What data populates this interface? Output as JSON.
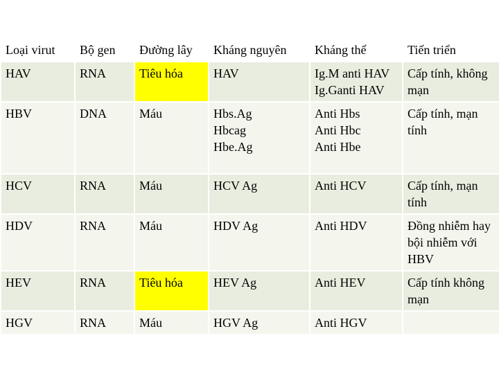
{
  "colors": {
    "header_bg": "#ffffff",
    "row_odd": "#e9eddf",
    "row_even": "#f4f6ee",
    "highlight": "#ffff00"
  },
  "headers": [
    "Loại virut",
    "Bộ gen",
    "Đường lây",
    "Kháng nguyên",
    "Kháng thể",
    "Tiến triển"
  ],
  "rows": [
    {
      "virus": "HAV",
      "genome": "RNA",
      "route": "Tiêu hóa",
      "antigen": [
        "HAV"
      ],
      "antibody": [
        "Ig.M anti HAV",
        "Ig.Ganti HAV"
      ],
      "course": "Cấp tính, không mạn"
    },
    {
      "virus": "HBV",
      "genome": "DNA",
      "route": "Máu",
      "antigen": [
        "Hbs.Ag",
        "Hbcag",
        "Hbe.Ag"
      ],
      "antibody": [
        "Anti Hbs",
        "Anti Hbc",
        "Anti Hbe"
      ],
      "course": "Cấp tính, mạn tính"
    },
    {
      "virus": "HCV",
      "genome": "RNA",
      "route": "Máu",
      "antigen": [
        "HCV Ag"
      ],
      "antibody": [
        "Anti HCV"
      ],
      "course": "Cấp tính, mạn tính"
    },
    {
      "virus": "HDV",
      "genome": "RNA",
      "route": "Máu",
      "antigen": [
        "HDV Ag"
      ],
      "antibody": [
        "Anti HDV"
      ],
      "course": "Đồng nhiễm hay bội nhiễm với HBV"
    },
    {
      "virus": "HEV",
      "genome": "RNA",
      "route": "Tiêu hóa",
      "antigen": [
        "HEV Ag"
      ],
      "antibody": [
        "Anti HEV"
      ],
      "course": "Cấp tính không mạn"
    },
    {
      "virus": "HGV",
      "genome": "RNA",
      "route": "Máu",
      "antigen": [
        "HGV Ag"
      ],
      "antibody": [
        "Anti HGV"
      ],
      "course": ""
    }
  ]
}
